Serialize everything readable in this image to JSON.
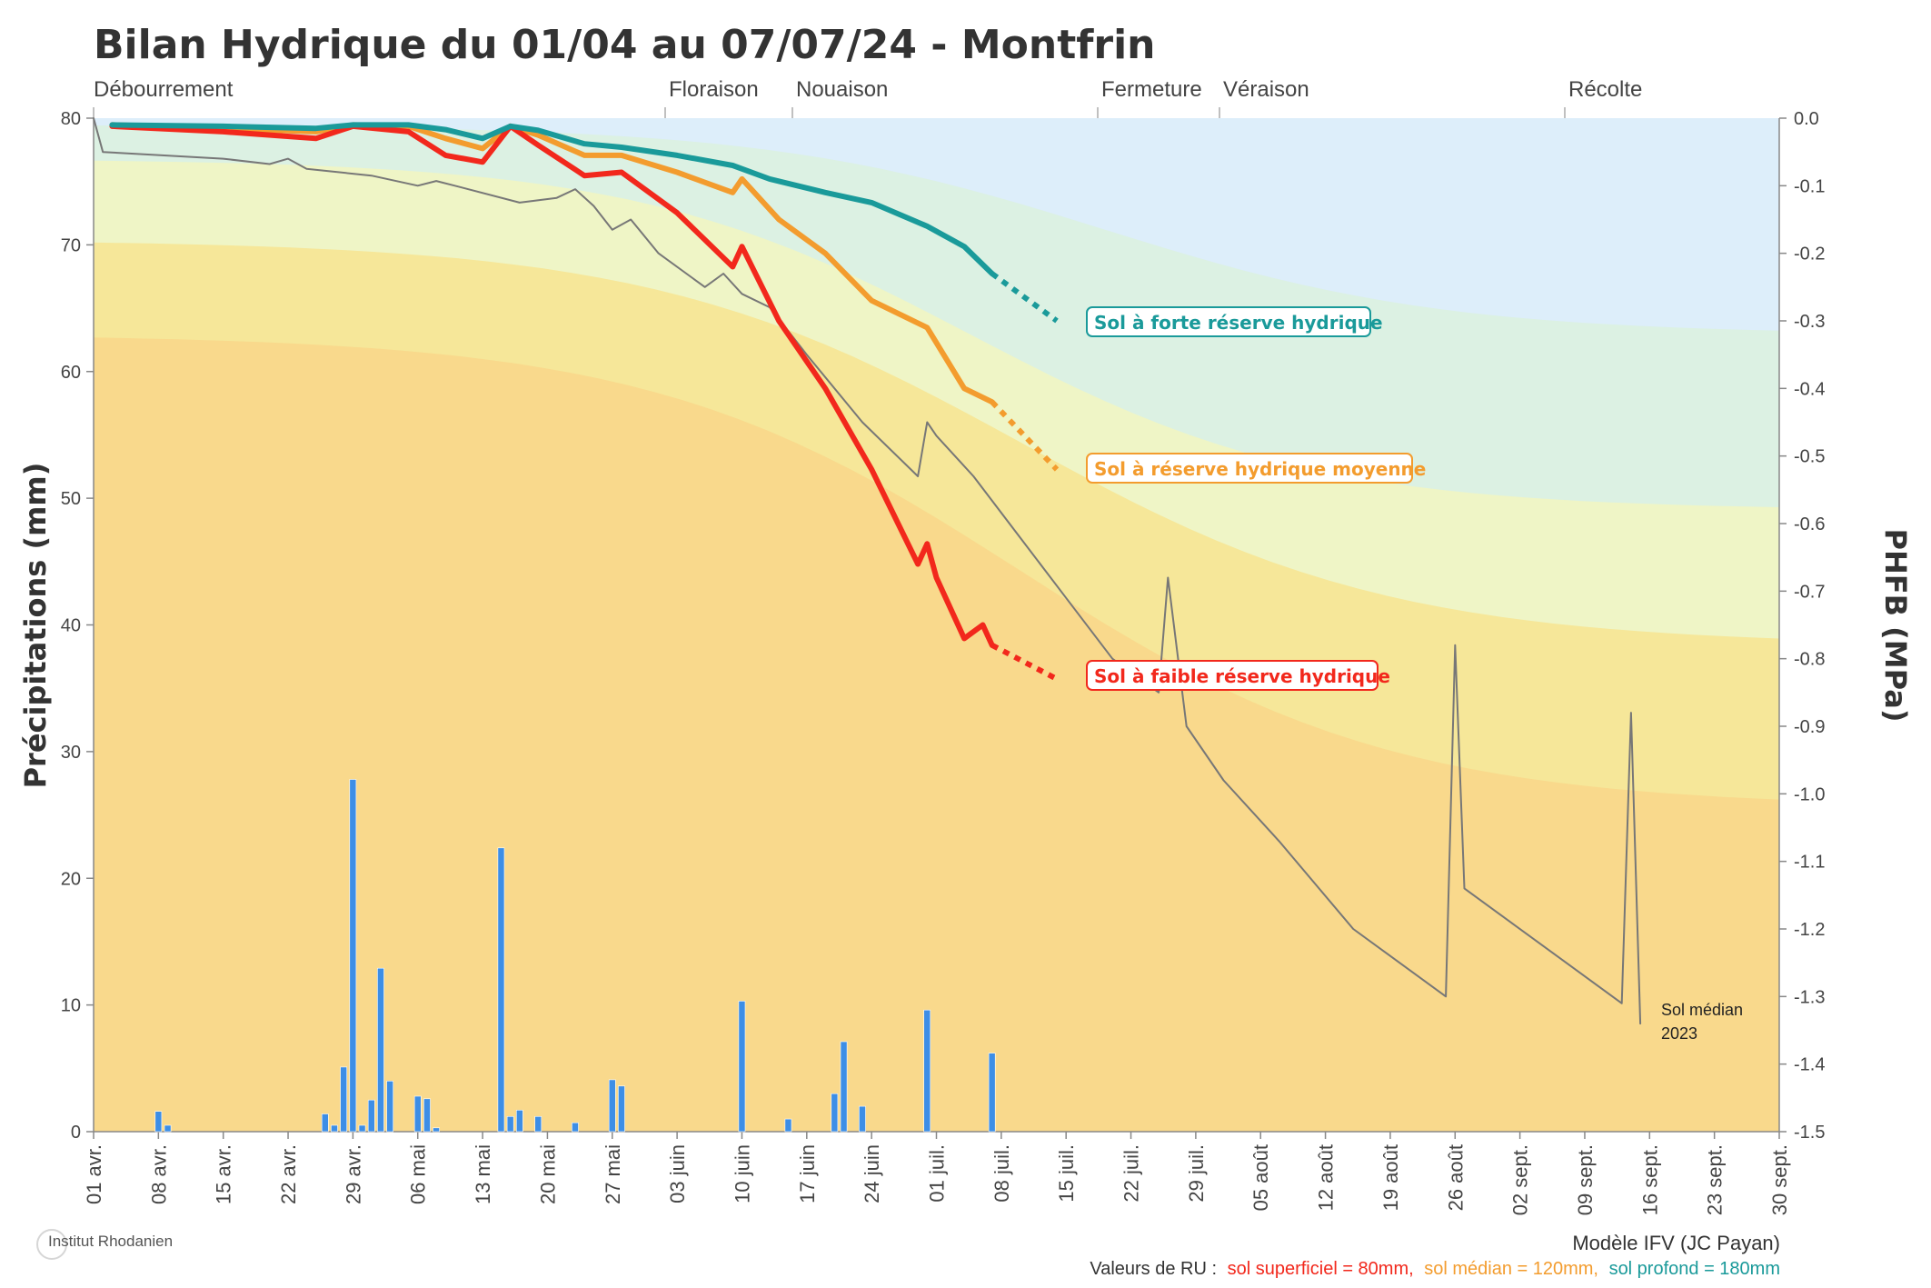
{
  "title": "Bilan Hydrique du 01/04 au 07/07/24 - Montfrin",
  "stages": [
    {
      "label": "Débourrement",
      "date": "01 avr."
    },
    {
      "label": "Floraison",
      "date": "03 juin"
    },
    {
      "label": "Nouaison",
      "date": "10 juin"
    },
    {
      "label": "Fermeture",
      "date": "15 juil."
    },
    {
      "label": "Véraison",
      "date": "22 juil."
    },
    {
      "label": "Récolte",
      "date": "09 sept."
    }
  ],
  "footer": {
    "model": "Modèle IFV (JC Payan)",
    "ru_prefix": "Valeurs de RU :",
    "ru_shallow": "sol superficiel = 80mm,",
    "ru_medium": "sol médian = 120mm,",
    "ru_deep": "sol profond = 180mm",
    "logo": "Institut Rhodanien"
  },
  "colors": {
    "deep": "#1a9a9a",
    "medium": "#f39c2e",
    "shallow": "#f2281c",
    "rain": "#3d8ee6",
    "median2023": "#777777"
  },
  "chart_data": {
    "type": "line",
    "title": "Bilan Hydrique du 01/04 au 07/07/24 - Montfrin",
    "y_left": {
      "label": "Précipitations (mm)",
      "range": [
        0,
        80
      ],
      "ticks": [
        0,
        10,
        20,
        30,
        40,
        50,
        60,
        70,
        80
      ]
    },
    "y_right": {
      "label": "PHFB (MPa)",
      "range": [
        -1.5,
        0.0
      ],
      "ticks": [
        "0.0",
        "-0.1",
        "-0.2",
        "-0.3",
        "-0.4",
        "-0.5",
        "-0.6",
        "-0.7",
        "-0.8",
        "-0.9",
        "-1.0",
        "-1.1",
        "-1.2",
        "-1.3",
        "-1.4",
        "-1.5"
      ]
    },
    "x_axis": {
      "start": "2024-04-01",
      "end": "2024-09-30",
      "ticks": [
        "01 avr.",
        "08 avr.",
        "15 avr.",
        "22 avr.",
        "29 avr.",
        "06 mai",
        "13 mai",
        "20 mai",
        "27 mai",
        "03 juin",
        "10 juin",
        "17 juin",
        "24 juin",
        "01 juil.",
        "08 juil.",
        "15 juil.",
        "22 juil.",
        "29 juil.",
        "05 août",
        "12 août",
        "19 août",
        "26 août",
        "02 sept.",
        "09 sept.",
        "16 sept.",
        "23 sept.",
        "30 sept."
      ]
    },
    "rain": {
      "name": "Précipitations",
      "dates": [
        "2024-04-08",
        "2024-04-09",
        "2024-04-26",
        "2024-04-27",
        "2024-04-28",
        "2024-04-29",
        "2024-04-30",
        "2024-05-01",
        "2024-05-02",
        "2024-05-03",
        "2024-05-06",
        "2024-05-07",
        "2024-05-08",
        "2024-05-15",
        "2024-05-16",
        "2024-05-17",
        "2024-05-19",
        "2024-05-23",
        "2024-05-27",
        "2024-05-28",
        "2024-06-10",
        "2024-06-15",
        "2024-06-20",
        "2024-06-21",
        "2024-06-23",
        "2024-06-30",
        "2024-07-07"
      ],
      "values": [
        1.6,
        0.5,
        1.4,
        0.5,
        5.1,
        27.8,
        0.5,
        2.5,
        12.9,
        4.0,
        2.8,
        2.6,
        0.3,
        22.4,
        1.2,
        1.7,
        1.2,
        0.7,
        4.1,
        3.6,
        10.3,
        1.0,
        3.0,
        7.1,
        2.0,
        9.6,
        6.2
      ]
    },
    "series": [
      {
        "name": "Sol à forte réserve hydrique",
        "dates": [
          "2024-04-03",
          "2024-04-15",
          "2024-04-25",
          "2024-04-29",
          "2024-05-05",
          "2024-05-09",
          "2024-05-13",
          "2024-05-16",
          "2024-05-19",
          "2024-05-24",
          "2024-05-28",
          "2024-06-03",
          "2024-06-09",
          "2024-06-13",
          "2024-06-19",
          "2024-06-24",
          "2024-06-30",
          "2024-07-04",
          "2024-07-07"
        ],
        "values": [
          -0.01,
          -0.012,
          -0.015,
          -0.01,
          -0.01,
          -0.017,
          -0.03,
          -0.012,
          -0.018,
          -0.038,
          -0.043,
          -0.055,
          -0.07,
          -0.09,
          -0.11,
          -0.125,
          -0.16,
          -0.19,
          -0.23
        ],
        "forecast_dates": [
          "2024-07-07",
          "2024-07-14"
        ],
        "forecast_values": [
          -0.23,
          -0.3
        ]
      },
      {
        "name": "Sol à réserve hydrique moyenne",
        "dates": [
          "2024-04-03",
          "2024-04-15",
          "2024-04-25",
          "2024-04-29",
          "2024-05-05",
          "2024-05-09",
          "2024-05-13",
          "2024-05-16",
          "2024-05-19",
          "2024-05-24",
          "2024-05-28",
          "2024-06-03",
          "2024-06-09",
          "2024-06-10",
          "2024-06-14",
          "2024-06-19",
          "2024-06-24",
          "2024-06-30",
          "2024-07-04",
          "2024-07-07"
        ],
        "values": [
          -0.01,
          -0.015,
          -0.02,
          -0.01,
          -0.012,
          -0.03,
          -0.045,
          -0.012,
          -0.025,
          -0.055,
          -0.055,
          -0.08,
          -0.11,
          -0.09,
          -0.15,
          -0.2,
          -0.27,
          -0.31,
          -0.4,
          -0.42
        ],
        "forecast_dates": [
          "2024-07-07",
          "2024-07-14"
        ],
        "forecast_values": [
          -0.42,
          -0.52
        ]
      },
      {
        "name": "Sol à faible réserve hydrique",
        "dates": [
          "2024-04-03",
          "2024-04-15",
          "2024-04-25",
          "2024-04-29",
          "2024-05-05",
          "2024-05-09",
          "2024-05-13",
          "2024-05-16",
          "2024-05-19",
          "2024-05-24",
          "2024-05-28",
          "2024-06-03",
          "2024-06-09",
          "2024-06-10",
          "2024-06-14",
          "2024-06-19",
          "2024-06-24",
          "2024-06-29",
          "2024-06-30",
          "2024-07-01",
          "2024-07-04",
          "2024-07-06",
          "2024-07-07"
        ],
        "values": [
          -0.012,
          -0.02,
          -0.03,
          -0.012,
          -0.02,
          -0.055,
          -0.065,
          -0.012,
          -0.04,
          -0.085,
          -0.08,
          -0.14,
          -0.22,
          -0.19,
          -0.3,
          -0.4,
          -0.52,
          -0.66,
          -0.63,
          -0.68,
          -0.77,
          -0.75,
          -0.78
        ],
        "forecast_dates": [
          "2024-07-07",
          "2024-07-14"
        ],
        "forecast_values": [
          -0.78,
          -0.83
        ]
      },
      {
        "name": "Sol médian 2023",
        "dates": [
          "2024-04-01",
          "2024-04-02",
          "2024-04-15",
          "2024-04-20",
          "2024-04-22",
          "2024-04-24",
          "2024-05-01",
          "2024-05-06",
          "2024-05-08",
          "2024-05-10",
          "2024-05-17",
          "2024-05-21",
          "2024-05-23",
          "2024-05-25",
          "2024-05-27",
          "2024-05-29",
          "2024-06-01",
          "2024-06-06",
          "2024-06-08",
          "2024-06-10",
          "2024-06-13",
          "2024-06-17",
          "2024-06-23",
          "2024-06-29",
          "2024-06-30",
          "2024-07-01",
          "2024-07-05",
          "2024-07-10",
          "2024-07-15",
          "2024-07-20",
          "2024-07-25",
          "2024-07-26",
          "2024-07-28",
          "2024-08-01",
          "2024-08-07",
          "2024-08-15",
          "2024-08-25",
          "2024-08-26",
          "2024-08-27",
          "2024-09-01",
          "2024-09-07",
          "2024-09-13",
          "2024-09-14",
          "2024-09-15"
        ],
        "values": [
          0.0,
          -0.05,
          -0.06,
          -0.068,
          -0.06,
          -0.075,
          -0.085,
          -0.1,
          -0.093,
          -0.1,
          -0.125,
          -0.118,
          -0.105,
          -0.13,
          -0.165,
          -0.15,
          -0.2,
          -0.25,
          -0.23,
          -0.26,
          -0.28,
          -0.35,
          -0.45,
          -0.53,
          -0.45,
          -0.47,
          -0.53,
          -0.62,
          -0.71,
          -0.8,
          -0.85,
          -0.68,
          -0.9,
          -0.98,
          -1.07,
          -1.2,
          -1.3,
          -0.78,
          -1.14,
          -1.19,
          -1.25,
          -1.31,
          -0.88,
          -1.34
        ]
      }
    ],
    "labels": {
      "deep": "Sol à forte réserve hydrique",
      "medium": "Sol à réserve hydrique moyenne",
      "shallow": "Sol à faible réserve hydrique",
      "median_line1": "Sol médian",
      "median_line2": "2023"
    }
  }
}
